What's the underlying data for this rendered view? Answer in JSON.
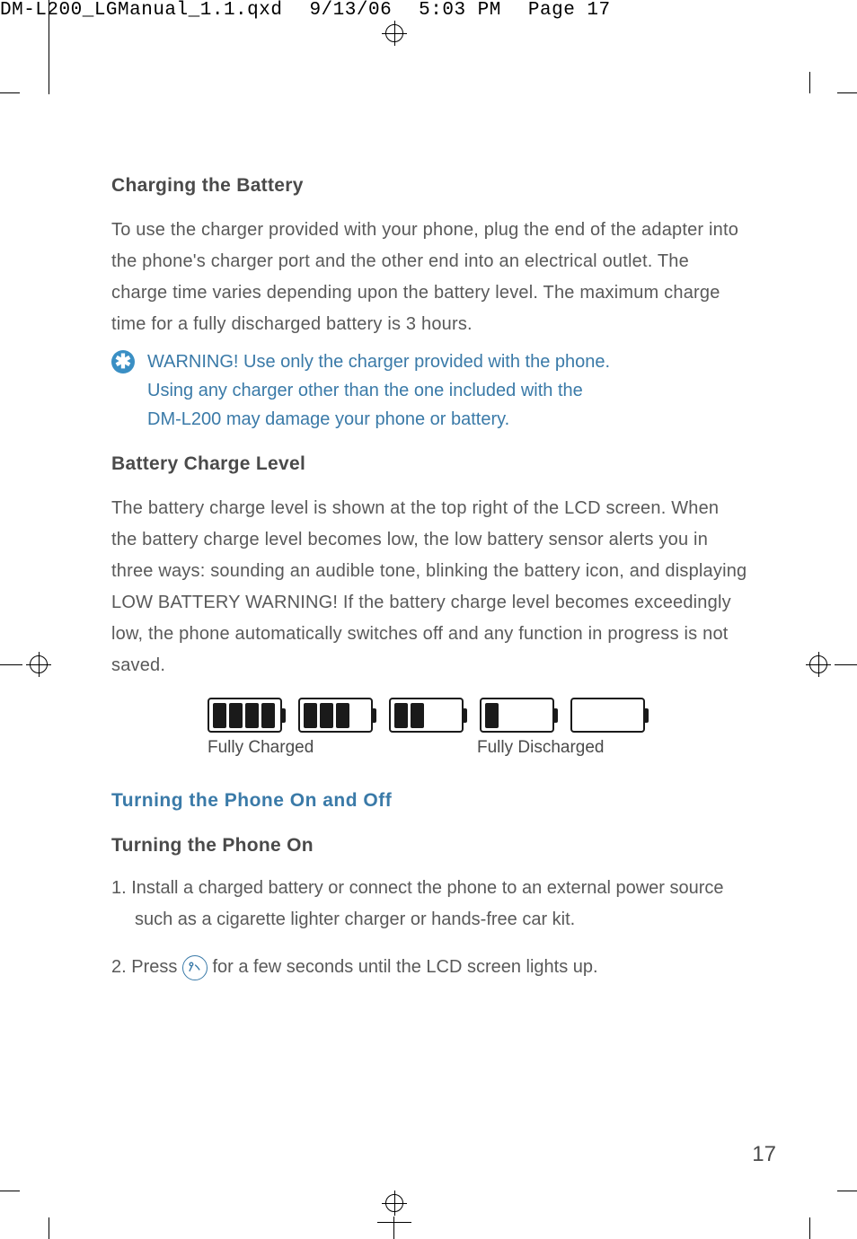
{
  "header": {
    "filename": "DM-L200_LGManual_1.1.qxd",
    "date": "9/13/06",
    "time": "5:03 PM",
    "page_label": "Page 17"
  },
  "sections": {
    "charging": {
      "heading": "Charging the Battery",
      "body": "To use the charger provided with your phone, plug the end of the adapter into the phone's charger port and the other end into an electrical outlet. The charge time varies depending upon the battery level. The maximum charge time for a fully discharged battery is 3 hours."
    },
    "warning": {
      "icon_glyph": "✱",
      "line1": "WARNING! Use only the charger provided with the phone.",
      "line2": "Using any charger other than the one included with the",
      "line3": "DM-L200 may damage your phone or battery."
    },
    "battery_level": {
      "heading": "Battery Charge Level",
      "body": "The battery charge level is shown at the top right of the LCD screen. When the battery charge level becomes low, the low battery sensor alerts you in three ways: sounding an audible tone, blinking the battery icon, and displaying LOW BATTERY WARNING! If the battery charge level becomes exceedingly low, the phone automatically switches off and any function in progress is not saved.",
      "label_full": "Fully Charged",
      "label_empty": "Fully Discharged",
      "battery_states": [
        4,
        3,
        2,
        1,
        0
      ]
    },
    "turning_on_off": {
      "heading": "Turning the Phone On and Off",
      "sub_heading": "Turning the Phone On",
      "step1": "1. Install a charged battery or connect the phone to an external power source such as a cigarette lighter charger or hands-free car kit.",
      "step2_pre": "2. Press ",
      "step2_post": " for a few seconds until the LCD screen lights up."
    }
  },
  "page_number": "17",
  "colors": {
    "heading_gray": "#4a4a4a",
    "body_gray": "#595959",
    "blue_text": "#3a7aa8",
    "icon_blue": "#3a8fc4",
    "black": "#1a1a1a"
  },
  "typography": {
    "heading_fontsize": 21,
    "body_fontsize": 20,
    "label_fontsize": 19,
    "pagenum_fontsize": 24
  }
}
